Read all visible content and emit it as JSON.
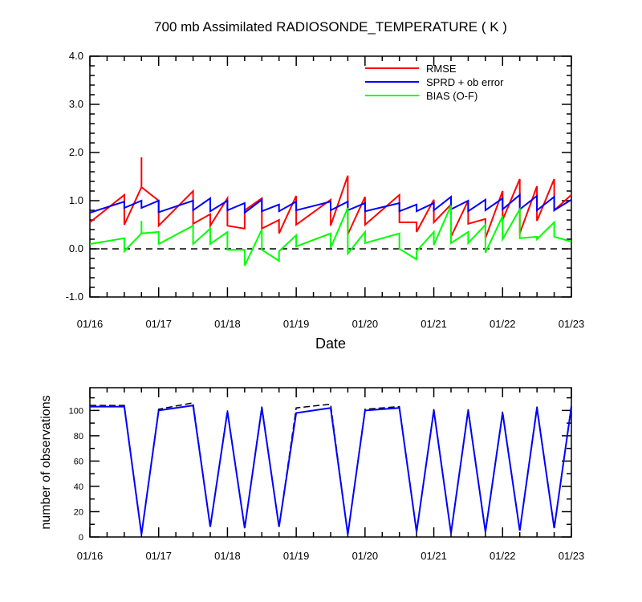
{
  "chart_data": [
    {
      "type": "line",
      "title": "700 mb Assimilated RADIOSONDE_TEMPERATURE ( K )",
      "xlabel": "Date",
      "ylabel": "",
      "x_tick_labels": [
        "01/16",
        "01/17",
        "01/18",
        "01/19",
        "01/20",
        "01/21",
        "01/22",
        "01/23"
      ],
      "y_tick_labels": [
        "-1.0",
        "0.0",
        "1.0",
        "2.0",
        "3.0",
        "4.0"
      ],
      "xlim": [
        0,
        7
      ],
      "ylim": [
        -1.0,
        4.0
      ],
      "zero_line": true,
      "legend_position": "top-right",
      "series": [
        {
          "name": "RMSE",
          "color": "#ff0000",
          "points": [
            [
              0,
              0.55
            ],
            [
              0.5,
              1.12
            ],
            [
              0.5,
              0.5
            ],
            [
              0.75,
              1.28
            ],
            [
              0.75,
              1.9
            ],
            [
              0.75,
              1.28
            ],
            [
              1.0,
              1.0
            ],
            [
              1.0,
              0.48
            ],
            [
              1.5,
              1.2
            ],
            [
              1.5,
              0.52
            ],
            [
              1.75,
              0.72
            ],
            [
              1.75,
              0.48
            ],
            [
              2.0,
              1.05
            ],
            [
              2.0,
              0.48
            ],
            [
              2.25,
              0.42
            ],
            [
              2.25,
              0.8
            ],
            [
              2.5,
              1.05
            ],
            [
              2.5,
              0.42
            ],
            [
              2.75,
              0.6
            ],
            [
              2.75,
              0.32
            ],
            [
              3.0,
              1.1
            ],
            [
              3.0,
              0.5
            ],
            [
              3.5,
              1.02
            ],
            [
              3.5,
              0.48
            ],
            [
              3.75,
              1.52
            ],
            [
              3.75,
              0.3
            ],
            [
              4.0,
              1.08
            ],
            [
              4.0,
              0.5
            ],
            [
              4.5,
              1.12
            ],
            [
              4.5,
              0.55
            ],
            [
              4.75,
              0.55
            ],
            [
              4.75,
              0.35
            ],
            [
              5.0,
              1.02
            ],
            [
              5.0,
              0.55
            ],
            [
              5.25,
              0.92
            ],
            [
              5.25,
              0.25
            ],
            [
              5.5,
              1.0
            ],
            [
              5.5,
              0.52
            ],
            [
              5.75,
              0.62
            ],
            [
              5.75,
              0.22
            ],
            [
              6.0,
              1.2
            ],
            [
              6.0,
              0.6
            ],
            [
              6.25,
              1.45
            ],
            [
              6.25,
              0.32
            ],
            [
              6.5,
              1.3
            ],
            [
              6.5,
              0.58
            ],
            [
              6.75,
              1.45
            ],
            [
              6.75,
              0.8
            ],
            [
              7.0,
              1.12
            ]
          ]
        },
        {
          "name": "SPRD + ob error",
          "color": "#0000ff",
          "points": [
            [
              0,
              0.75
            ],
            [
              0.5,
              0.98
            ],
            [
              0.5,
              0.85
            ],
            [
              0.75,
              1.0
            ],
            [
              0.75,
              0.85
            ],
            [
              1.0,
              1.0
            ],
            [
              1.0,
              0.76
            ],
            [
              1.5,
              1.0
            ],
            [
              1.5,
              0.8
            ],
            [
              1.75,
              1.05
            ],
            [
              1.75,
              0.78
            ],
            [
              2.0,
              1.0
            ],
            [
              2.0,
              0.8
            ],
            [
              2.25,
              0.95
            ],
            [
              2.25,
              0.75
            ],
            [
              2.5,
              1.02
            ],
            [
              2.5,
              0.78
            ],
            [
              2.75,
              0.92
            ],
            [
              2.75,
              0.78
            ],
            [
              3.0,
              0.98
            ],
            [
              3.0,
              0.8
            ],
            [
              3.5,
              0.98
            ],
            [
              3.5,
              0.8
            ],
            [
              3.75,
              0.98
            ],
            [
              3.75,
              0.8
            ],
            [
              4.0,
              0.95
            ],
            [
              4.0,
              0.78
            ],
            [
              4.5,
              0.95
            ],
            [
              4.5,
              0.78
            ],
            [
              4.75,
              0.92
            ],
            [
              4.75,
              0.78
            ],
            [
              5.0,
              0.95
            ],
            [
              5.0,
              0.8
            ],
            [
              5.25,
              1.08
            ],
            [
              5.25,
              0.82
            ],
            [
              5.5,
              1.0
            ],
            [
              5.5,
              0.78
            ],
            [
              5.75,
              1.02
            ],
            [
              5.75,
              0.8
            ],
            [
              6.0,
              1.05
            ],
            [
              6.0,
              0.82
            ],
            [
              6.25,
              1.12
            ],
            [
              6.25,
              0.82
            ],
            [
              6.5,
              1.1
            ],
            [
              6.5,
              0.8
            ],
            [
              6.75,
              1.08
            ],
            [
              6.75,
              0.8
            ],
            [
              7.0,
              1.02
            ]
          ]
        },
        {
          "name": "BIAS (O-F)",
          "color": "#00ff00",
          "points": [
            [
              0,
              0.1
            ],
            [
              0.5,
              0.22
            ],
            [
              0.5,
              -0.05
            ],
            [
              0.75,
              0.32
            ],
            [
              0.75,
              0.58
            ],
            [
              0.75,
              0.32
            ],
            [
              1.0,
              0.35
            ],
            [
              1.0,
              0.1
            ],
            [
              1.5,
              0.48
            ],
            [
              1.5,
              0.1
            ],
            [
              1.75,
              0.42
            ],
            [
              1.75,
              0.1
            ],
            [
              2.0,
              0.35
            ],
            [
              2.0,
              -0.02
            ],
            [
              2.25,
              -0.02
            ],
            [
              2.25,
              -0.35
            ],
            [
              2.5,
              0.4
            ],
            [
              2.5,
              -0.02
            ],
            [
              2.75,
              -0.25
            ],
            [
              2.75,
              -0.05
            ],
            [
              3.0,
              0.28
            ],
            [
              3.0,
              0.05
            ],
            [
              3.5,
              0.32
            ],
            [
              3.5,
              0.02
            ],
            [
              3.75,
              0.85
            ],
            [
              3.75,
              -0.1
            ],
            [
              4.0,
              0.35
            ],
            [
              4.0,
              0.12
            ],
            [
              4.5,
              0.32
            ],
            [
              4.5,
              0.0
            ],
            [
              4.75,
              -0.22
            ],
            [
              4.75,
              -0.05
            ],
            [
              5.0,
              0.35
            ],
            [
              5.0,
              0.08
            ],
            [
              5.25,
              0.9
            ],
            [
              5.25,
              0.12
            ],
            [
              5.5,
              0.35
            ],
            [
              5.5,
              0.12
            ],
            [
              5.75,
              0.5
            ],
            [
              5.75,
              -0.08
            ],
            [
              6.0,
              0.68
            ],
            [
              6.0,
              0.2
            ],
            [
              6.25,
              0.82
            ],
            [
              6.25,
              0.22
            ],
            [
              6.5,
              0.25
            ],
            [
              6.5,
              0.2
            ],
            [
              6.75,
              0.55
            ],
            [
              6.75,
              0.25
            ],
            [
              7.0,
              0.15
            ]
          ]
        }
      ]
    },
    {
      "type": "line",
      "title": "",
      "xlabel": "",
      "ylabel": "number of observations",
      "x_tick_labels": [
        "01/16",
        "01/17",
        "01/18",
        "01/19",
        "01/20",
        "01/21",
        "01/22",
        "01/23"
      ],
      "y_tick_labels": [
        "0",
        "20",
        "40",
        "60",
        "80",
        "100"
      ],
      "xlim": [
        0,
        7
      ],
      "ylim": [
        0,
        118
      ],
      "series": [
        {
          "name": "",
          "color": "#000000",
          "dashed": true,
          "points": [
            [
              0,
              104
            ],
            [
              0.5,
              104
            ],
            [
              0.75,
              2
            ],
            [
              1.0,
              101
            ],
            [
              1.5,
              106
            ],
            [
              1.75,
              8
            ],
            [
              2.0,
              100
            ],
            [
              2.25,
              7
            ],
            [
              2.5,
              103
            ],
            [
              2.75,
              8
            ],
            [
              3.0,
              102
            ],
            [
              3.5,
              105
            ],
            [
              3.75,
              2
            ],
            [
              4.0,
              101
            ],
            [
              4.5,
              103
            ],
            [
              4.75,
              4
            ],
            [
              5.0,
              101
            ],
            [
              5.25,
              3
            ],
            [
              5.5,
              101
            ],
            [
              5.75,
              4
            ],
            [
              6.0,
              99
            ],
            [
              6.25,
              5
            ],
            [
              6.5,
              103
            ],
            [
              6.75,
              7
            ],
            [
              7.0,
              104
            ]
          ]
        },
        {
          "name": "",
          "color": "#0000ff",
          "dashed": false,
          "points": [
            [
              0,
              103
            ],
            [
              0.5,
              103
            ],
            [
              0.75,
              2
            ],
            [
              1.0,
              100
            ],
            [
              1.5,
              104
            ],
            [
              1.75,
              8
            ],
            [
              2.0,
              99
            ],
            [
              2.25,
              7
            ],
            [
              2.5,
              102
            ],
            [
              2.75,
              8
            ],
            [
              3.0,
              98
            ],
            [
              3.5,
              102
            ],
            [
              3.75,
              2
            ],
            [
              4.0,
              100
            ],
            [
              4.5,
              102
            ],
            [
              4.75,
              4
            ],
            [
              5.0,
              100
            ],
            [
              5.25,
              3
            ],
            [
              5.5,
              100
            ],
            [
              5.75,
              4
            ],
            [
              6.0,
              98
            ],
            [
              6.25,
              5
            ],
            [
              6.5,
              102
            ],
            [
              6.75,
              7
            ],
            [
              7.0,
              103
            ]
          ]
        }
      ]
    }
  ]
}
